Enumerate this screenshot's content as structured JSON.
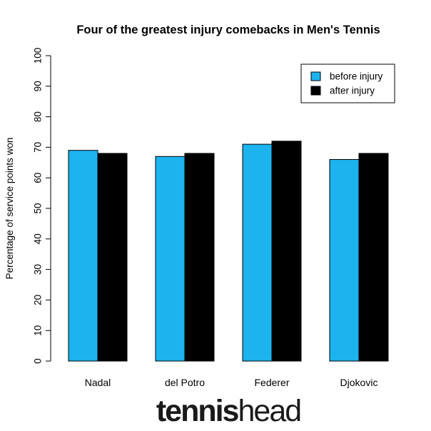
{
  "chart_data": {
    "type": "bar",
    "title": "Four of the greatest injury comebacks in Men's Tennis",
    "xlabel": "",
    "ylabel": "Percentage of service points won",
    "categories": [
      "Nadal",
      "del Potro",
      "Federer",
      "Djokovic"
    ],
    "series": [
      {
        "name": "before injury",
        "color": "#1db3ef",
        "values": [
          69,
          67,
          71,
          66
        ]
      },
      {
        "name": "after injury",
        "color": "#000000",
        "values": [
          68,
          68,
          72,
          68
        ]
      }
    ],
    "ylim": [
      0,
      100
    ],
    "yticks": [
      "0",
      "10",
      "20",
      "30",
      "40",
      "50",
      "60",
      "70",
      "80",
      "90",
      "100"
    ],
    "grid": false,
    "legend_position": "top-right"
  },
  "logo": {
    "part1": "tennis",
    "part2": "head"
  }
}
